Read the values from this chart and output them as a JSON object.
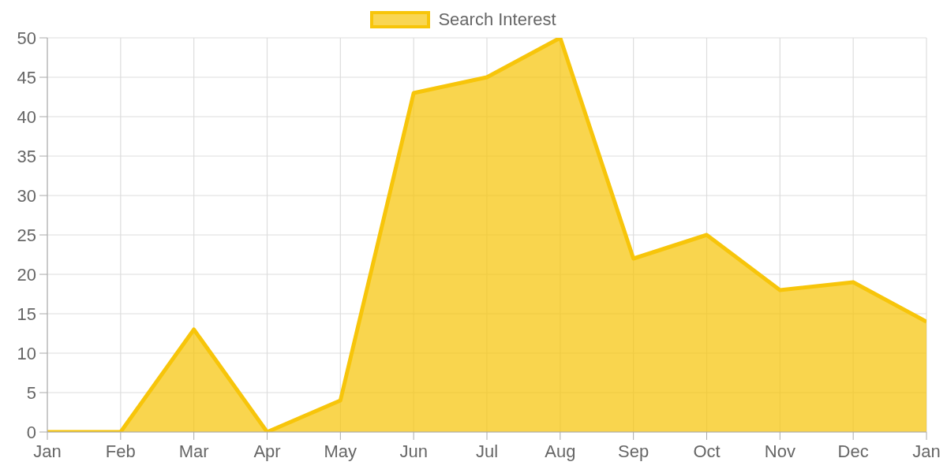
{
  "chart_data": {
    "type": "area",
    "categories": [
      "Jan",
      "Feb",
      "Mar",
      "Apr",
      "May",
      "Jun",
      "Jul",
      "Aug",
      "Sep",
      "Oct",
      "Nov",
      "Dec",
      "Jan"
    ],
    "series": [
      {
        "name": "Search Interest",
        "color": "#f7c50a",
        "values": [
          0,
          0,
          13,
          0,
          4,
          43,
          45,
          50,
          22,
          25,
          18,
          19,
          14
        ]
      }
    ],
    "ylim": [
      0,
      50
    ],
    "yticks": [
      0,
      5,
      10,
      15,
      20,
      25,
      30,
      35,
      40,
      45,
      50
    ],
    "grid": true,
    "legend": "top",
    "marker": "none",
    "line_style": "solid"
  }
}
